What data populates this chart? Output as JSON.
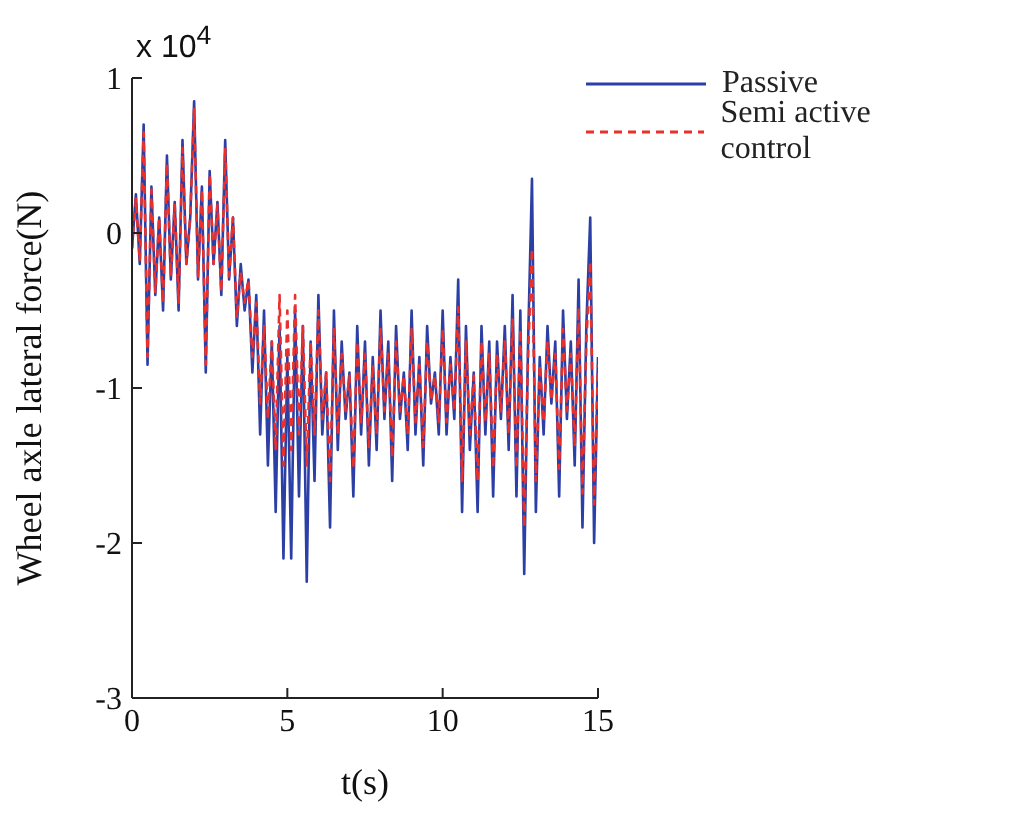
{
  "chart_data": {
    "type": "line",
    "xlabel": "t(s)",
    "ylabel": "Wheel axle lateral force(N)",
    "annotations": [
      "x 10$^{4}$"
    ],
    "xlim": [
      0,
      15
    ],
    "xticks": [
      0,
      5,
      10,
      15
    ],
    "ylim": [
      -3,
      1
    ],
    "yticks": [
      -3,
      -2,
      -1,
      0,
      1
    ],
    "grid": false,
    "legend": "top right",
    "marker": "none",
    "x": [
      0,
      0.125,
      0.25,
      0.375,
      0.5,
      0.625,
      0.75,
      0.875,
      1,
      1.125,
      1.25,
      1.375,
      1.5,
      1.625,
      1.75,
      1.875,
      2,
      2.125,
      2.25,
      2.375,
      2.5,
      2.625,
      2.75,
      2.875,
      3,
      3.125,
      3.25,
      3.375,
      3.5,
      3.625,
      3.75,
      3.875,
      4,
      4.125,
      4.25,
      4.375,
      4.5,
      4.625,
      4.75,
      4.875,
      5,
      5.125,
      5.25,
      5.375,
      5.5,
      5.625,
      5.75,
      5.875,
      6,
      6.125,
      6.25,
      6.375,
      6.5,
      6.625,
      6.75,
      6.875,
      7,
      7.125,
      7.25,
      7.375,
      7.5,
      7.625,
      7.75,
      7.875,
      8,
      8.125,
      8.25,
      8.375,
      8.5,
      8.625,
      8.75,
      8.875,
      9,
      9.125,
      9.25,
      9.375,
      9.5,
      9.625,
      9.75,
      9.875,
      10,
      10.125,
      10.25,
      10.375,
      10.5,
      10.625,
      10.75,
      10.875,
      11,
      11.125,
      11.25,
      11.375,
      11.5,
      11.625,
      11.75,
      11.875,
      12,
      12.125,
      12.25,
      12.375,
      12.5,
      12.625,
      12.75,
      12.875,
      13,
      13.125,
      13.25,
      13.375,
      13.5,
      13.625,
      13.75,
      13.875,
      14,
      14.125,
      14.25,
      14.375,
      14.5,
      14.625,
      14.75,
      14.875,
      15
    ],
    "series": [
      {
        "name": "Passive",
        "color": "#2b3fa5",
        "line_style": "solid",
        "values": [
          -0.1,
          0.25,
          -0.2,
          0.7,
          -0.85,
          0.3,
          -0.4,
          0.1,
          -0.5,
          0.5,
          -0.3,
          0.2,
          -0.5,
          0.6,
          -0.2,
          0.1,
          0.85,
          -0.3,
          0.3,
          -0.9,
          0.4,
          -0.2,
          0.2,
          -0.4,
          0.6,
          -0.3,
          0.1,
          -0.6,
          -0.2,
          -0.5,
          -0.3,
          -0.9,
          -0.4,
          -1.3,
          -0.5,
          -1.5,
          -0.7,
          -1.8,
          -0.6,
          -2.1,
          -0.8,
          -2.1,
          -0.5,
          -1.7,
          -0.6,
          -2.25,
          -0.7,
          -1.6,
          -0.4,
          -1.3,
          -0.9,
          -1.9,
          -0.5,
          -1.4,
          -0.7,
          -1.2,
          -0.9,
          -1.7,
          -0.6,
          -1.3,
          -0.7,
          -1.5,
          -0.8,
          -1.4,
          -0.5,
          -1.2,
          -0.7,
          -1.6,
          -0.6,
          -1.2,
          -0.9,
          -1.4,
          -0.5,
          -1.3,
          -0.8,
          -1.5,
          -0.6,
          -1.1,
          -0.9,
          -1.3,
          -0.5,
          -1.3,
          -0.8,
          -1.2,
          -0.3,
          -1.8,
          -0.6,
          -1.4,
          -0.9,
          -1.8,
          -0.6,
          -1.3,
          -0.7,
          -1.7,
          -0.7,
          -1.2,
          -0.6,
          -1.4,
          -0.4,
          -1.7,
          -0.5,
          -2.2,
          -0.7,
          0.35,
          -1.8,
          -0.8,
          -1.3,
          -0.6,
          -1.1,
          -0.7,
          -1.7,
          -0.5,
          -1.2,
          -0.7,
          -1.5,
          -0.3,
          -1.9,
          -0.6,
          0.1,
          -2.0,
          -0.8
        ]
      },
      {
        "name": "Semi active control",
        "color": "#e8302c",
        "line_style": "dashed",
        "values": [
          -0.1,
          0.22,
          -0.18,
          0.65,
          -0.8,
          0.28,
          -0.38,
          0.1,
          -0.45,
          0.45,
          -0.28,
          0.18,
          -0.45,
          0.55,
          -0.2,
          0.1,
          0.8,
          -0.28,
          0.28,
          -0.85,
          0.38,
          -0.2,
          0.18,
          -0.38,
          0.55,
          -0.28,
          0.1,
          -0.55,
          -0.25,
          -0.45,
          -0.3,
          -0.8,
          -0.45,
          -1.1,
          -0.6,
          -1.2,
          -0.7,
          -1.4,
          -0.4,
          -1.5,
          -0.5,
          -1.4,
          -0.4,
          -1.3,
          -0.6,
          -1.5,
          -0.7,
          -1.3,
          -0.5,
          -1.2,
          -0.9,
          -1.6,
          -0.62,
          -1.3,
          -0.78,
          -1.15,
          -0.92,
          -1.52,
          -0.7,
          -1.22,
          -0.78,
          -1.38,
          -0.85,
          -1.3,
          -0.62,
          -1.15,
          -0.78,
          -1.45,
          -0.7,
          -1.15,
          -0.92,
          -1.3,
          -0.62,
          -1.22,
          -0.85,
          -1.38,
          -0.7,
          -1.08,
          -0.92,
          -1.22,
          -0.62,
          -1.22,
          -0.85,
          -1.15,
          -0.48,
          -1.6,
          -0.7,
          -1.3,
          -0.92,
          -1.6,
          -0.7,
          -1.22,
          -0.78,
          -1.52,
          -0.78,
          -1.15,
          -0.7,
          -1.3,
          -0.55,
          -1.52,
          -0.62,
          -1.9,
          -0.78,
          -0.1,
          -1.6,
          -0.85,
          -1.22,
          -0.7,
          -1.08,
          -0.78,
          -1.52,
          -0.62,
          -1.15,
          -0.78,
          -1.38,
          -0.48,
          -1.68,
          -0.7,
          -0.18,
          -1.75,
          -0.85
        ]
      }
    ]
  }
}
